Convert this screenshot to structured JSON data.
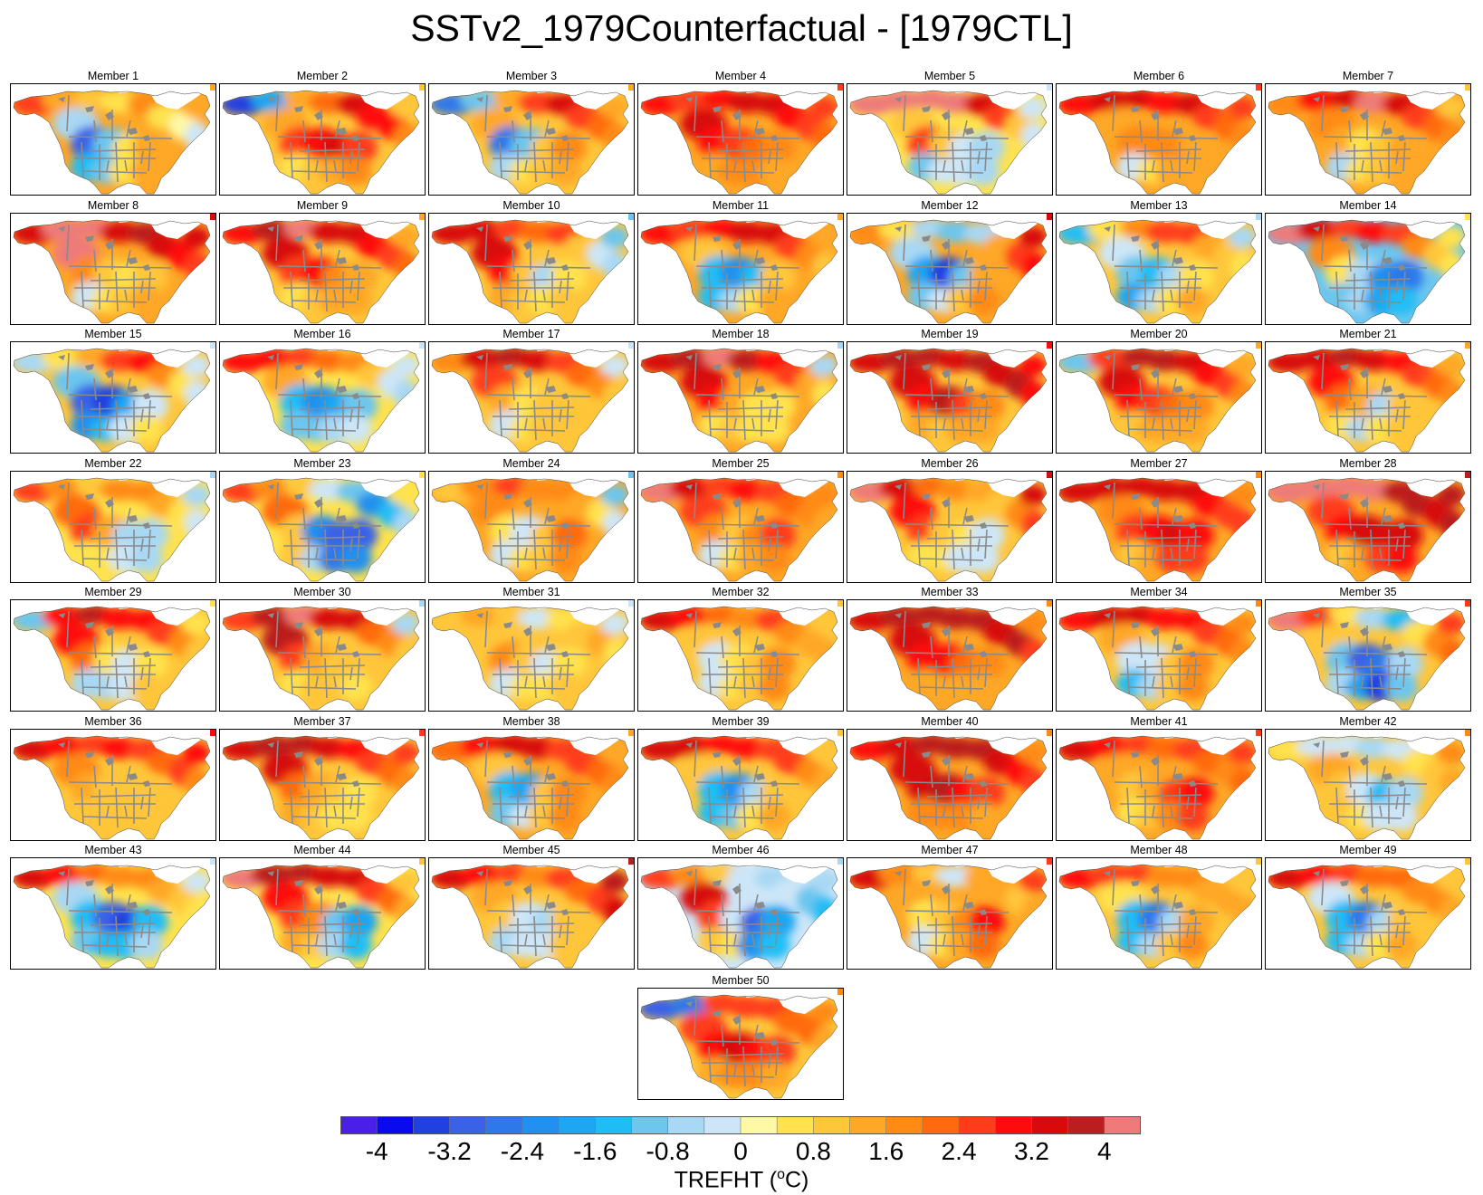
{
  "title": "SSTv2_1979Counterfactual - [1979CTL]",
  "colorbar": {
    "variable_label": "TREFHT (",
    "unit_super": "o",
    "unit_suffix": "C)",
    "tick_labels": [
      "-4",
      "-3.2",
      "-2.4",
      "-1.6",
      "-0.8",
      "0",
      "0.8",
      "1.6",
      "2.4",
      "3.2",
      "4"
    ],
    "colors": [
      "#4a1fe8",
      "#0a0af0",
      "#2040e0",
      "#3a62e6",
      "#2f78ea",
      "#2290ee",
      "#1fa6f2",
      "#20bdf5",
      "#6cc6ee",
      "#a8d8f4",
      "#cde6f7",
      "#fff8a4",
      "#ffe24d",
      "#ffc63a",
      "#ffa726",
      "#ff8a14",
      "#ff6a10",
      "#ff3c1a",
      "#ff0b0b",
      "#d80a0a",
      "#bb1e1e",
      "#ee7a7a"
    ]
  },
  "panels": [
    {
      "label": "Member 1",
      "anoms": [
        2.4,
        1.4,
        0.8,
        0.6,
        1.6,
        0.4,
        0,
        -0.4,
        1.2,
        -0.8,
        -3.0,
        -1.2,
        0.6,
        1.2,
        -1.6,
        -1.2,
        0.4,
        1.2,
        1.4
      ]
    },
    {
      "label": "Member 2",
      "anoms": [
        -3.6,
        -2.0,
        1.2,
        2.0,
        3.2,
        2.8,
        2.8,
        1.6,
        0.8,
        1.2,
        2.4,
        2.8,
        3.2,
        2.4,
        0.4,
        0.8,
        1.2,
        1.6,
        1.0
      ]
    },
    {
      "label": "Member 3",
      "anoms": [
        -2.8,
        -1.2,
        1.2,
        2.4,
        3.2,
        2.4,
        2.0,
        1.6,
        1.2,
        1.2,
        -2.8,
        -1.2,
        0.8,
        1.6,
        -0.8,
        0.4,
        0.8,
        1.2,
        1.0
      ]
    },
    {
      "label": "Member 4",
      "anoms": [
        2.8,
        2.4,
        2.8,
        3.2,
        3.2,
        2.8,
        2.4,
        2.0,
        2.4,
        3.2,
        3.0,
        2.4,
        2.0,
        1.6,
        1.2,
        1.6,
        1.6,
        1.2,
        1.2
      ]
    },
    {
      "label": "Member 5",
      "anoms": [
        4.0,
        4.0,
        4.0,
        4.2,
        3.2,
        2.4,
        0.8,
        -0.4,
        -0.4,
        0.8,
        2.4,
        0.8,
        -0.4,
        -0.8,
        -1.2,
        -0.4,
        -0.4,
        -0.8,
        0.4
      ]
    },
    {
      "label": "Member 6",
      "anoms": [
        2.8,
        3.2,
        3.2,
        2.8,
        3.2,
        2.4,
        2.0,
        1.6,
        2.4,
        1.2,
        1.6,
        1.6,
        1.6,
        1.2,
        -0.4,
        0.4,
        1.2,
        1.2,
        1.4
      ]
    },
    {
      "label": "Member 7",
      "anoms": [
        1.6,
        2.8,
        3.2,
        4.2,
        3.2,
        2.4,
        2.0,
        1.6,
        0.8,
        1.6,
        1.2,
        0.4,
        0.8,
        1.2,
        -0.8,
        0.4,
        0.8,
        1.2,
        1.2
      ]
    },
    {
      "label": "Member 8",
      "anoms": [
        3.2,
        4.0,
        4.2,
        3.2,
        3.6,
        3.2,
        2.8,
        2.4,
        3.2,
        4.2,
        1.6,
        0.8,
        0.4,
        0.8,
        -0.4,
        0.4,
        0.8,
        1.2,
        1.4
      ]
    },
    {
      "label": "Member 9",
      "anoms": [
        2.8,
        3.6,
        4.2,
        3.2,
        3.2,
        2.8,
        2.4,
        2.0,
        1.2,
        3.2,
        2.4,
        2.8,
        1.6,
        1.2,
        0.4,
        0.8,
        1.2,
        1.2,
        1.0
      ]
    },
    {
      "label": "Member 10",
      "anoms": [
        3.2,
        3.2,
        2.4,
        2.0,
        2.4,
        0.8,
        -0.4,
        -0.8,
        -1.2,
        3.2,
        2.8,
        0.8,
        -0.8,
        0.4,
        1.2,
        0.8,
        0.4,
        0.8,
        1.0
      ]
    },
    {
      "label": "Member 11",
      "anoms": [
        2.8,
        2.4,
        2.8,
        3.2,
        3.2,
        2.4,
        1.6,
        0.8,
        1.2,
        0.8,
        -1.6,
        -2.4,
        -1.6,
        0.8,
        -1.6,
        -0.8,
        0.4,
        1.2,
        1.2
      ]
    },
    {
      "label": "Member 12",
      "anoms": [
        1.6,
        0.4,
        -0.8,
        -1.2,
        -0.8,
        1.2,
        2.4,
        3.0,
        3.2,
        -0.8,
        -2.0,
        -3.6,
        -1.2,
        1.2,
        -1.2,
        -0.4,
        0.8,
        1.6,
        1.2
      ]
    },
    {
      "label": "Member 13",
      "anoms": [
        -1.6,
        0.4,
        1.6,
        2.4,
        2.4,
        1.2,
        0.8,
        0.4,
        -0.8,
        -0.4,
        -1.2,
        -1.6,
        -0.8,
        0.4,
        -2.0,
        -0.8,
        0.4,
        1.2,
        1.0
      ]
    },
    {
      "label": "Member 14",
      "anoms": [
        4.0,
        3.2,
        2.4,
        2.8,
        2.4,
        1.6,
        0.8,
        0.4,
        0.4,
        1.6,
        0.4,
        -0.8,
        -2.4,
        -2.8,
        -1.2,
        -0.8,
        -2.0,
        -1.6,
        -1.2
      ]
    },
    {
      "label": "Member 15",
      "anoms": [
        -0.8,
        0.4,
        1.2,
        2.4,
        2.8,
        1.6,
        0.4,
        -0.4,
        -0.4,
        -1.2,
        -3.2,
        -3.6,
        -2.0,
        -0.4,
        -2.4,
        -1.6,
        -0.4,
        0.4,
        0.8
      ]
    },
    {
      "label": "Member 16",
      "anoms": [
        2.8,
        2.8,
        2.4,
        2.0,
        1.6,
        0.8,
        -0.4,
        -0.8,
        -0.4,
        1.2,
        -1.6,
        -2.4,
        -2.0,
        -1.2,
        -1.2,
        -1.2,
        -0.8,
        -0.4,
        0.4
      ]
    },
    {
      "label": "Member 17",
      "anoms": [
        1.6,
        3.2,
        3.6,
        3.2,
        2.4,
        2.0,
        1.6,
        0.8,
        -0.4,
        2.4,
        1.2,
        0.4,
        0.8,
        0.8,
        -0.4,
        0.4,
        0.8,
        0.8,
        1.0
      ]
    },
    {
      "label": "Member 18",
      "anoms": [
        3.2,
        3.6,
        4.0,
        3.6,
        2.8,
        2.4,
        1.2,
        0.4,
        -0.8,
        3.2,
        2.8,
        1.2,
        0.4,
        0.4,
        0.4,
        0.8,
        0.4,
        0.4,
        1.2
      ]
    },
    {
      "label": "Member 19",
      "anoms": [
        3.2,
        3.6,
        3.6,
        3.2,
        3.6,
        3.2,
        3.6,
        2.8,
        2.8,
        3.2,
        2.8,
        3.6,
        2.4,
        1.6,
        1.2,
        0.8,
        1.2,
        1.2,
        1.0
      ]
    },
    {
      "label": "Member 20",
      "anoms": [
        -1.2,
        2.4,
        3.6,
        3.6,
        3.2,
        2.8,
        2.4,
        1.6,
        1.2,
        3.2,
        2.8,
        2.4,
        2.0,
        1.6,
        0.8,
        1.2,
        1.2,
        1.2,
        1.0
      ]
    },
    {
      "label": "Member 21",
      "anoms": [
        3.2,
        3.2,
        3.6,
        3.2,
        2.8,
        2.4,
        2.0,
        1.6,
        1.2,
        2.8,
        2.0,
        1.2,
        -0.8,
        0.8,
        0.4,
        -0.8,
        0.4,
        0.8,
        1.0
      ]
    },
    {
      "label": "Member 22",
      "anoms": [
        2.4,
        1.6,
        0.8,
        1.6,
        1.6,
        1.2,
        0.4,
        -0.4,
        -0.8,
        2.0,
        2.4,
        1.2,
        -0.8,
        -0.8,
        0.4,
        0.4,
        -0.4,
        -0.8,
        0.4
      ]
    },
    {
      "label": "Member 23",
      "anoms": [
        2.4,
        1.6,
        0.8,
        -0.4,
        -1.2,
        -2.4,
        -1.6,
        -0.8,
        0.4,
        2.0,
        0.8,
        -2.4,
        -3.2,
        -3.2,
        0.8,
        -0.8,
        -2.8,
        -2.4,
        0.4
      ]
    },
    {
      "label": "Member 24",
      "anoms": [
        0.8,
        1.6,
        2.4,
        1.6,
        1.6,
        1.2,
        0.4,
        -0.4,
        -1.2,
        1.6,
        0.4,
        -0.4,
        0.8,
        2.0,
        -0.4,
        0.4,
        0.8,
        1.6,
        1.2
      ]
    },
    {
      "label": "Member 25",
      "anoms": [
        4.0,
        3.2,
        2.4,
        2.8,
        2.4,
        2.0,
        1.6,
        1.2,
        1.6,
        2.4,
        1.6,
        0.8,
        1.6,
        2.4,
        -0.4,
        0.4,
        1.2,
        1.6,
        1.2
      ]
    },
    {
      "label": "Member 26",
      "anoms": [
        4.0,
        3.2,
        2.0,
        1.6,
        1.2,
        0.8,
        1.6,
        2.4,
        3.2,
        2.8,
        2.4,
        0.8,
        0.4,
        -0.4,
        0.4,
        0.4,
        -0.4,
        -0.4,
        0.8
      ]
    },
    {
      "label": "Member 27",
      "anoms": [
        3.2,
        3.2,
        3.2,
        3.2,
        3.2,
        2.8,
        2.4,
        2.4,
        1.6,
        1.6,
        2.4,
        2.8,
        3.2,
        2.8,
        0.8,
        1.2,
        2.4,
        2.4,
        1.2
      ]
    },
    {
      "label": "Member 28",
      "anoms": [
        4.0,
        4.0,
        4.0,
        4.0,
        3.6,
        3.6,
        3.2,
        3.6,
        3.6,
        2.4,
        2.8,
        3.2,
        3.2,
        3.2,
        0.8,
        1.2,
        2.4,
        2.8,
        1.4
      ]
    },
    {
      "label": "Member 29",
      "anoms": [
        -1.2,
        2.8,
        3.6,
        2.8,
        2.8,
        2.4,
        1.6,
        0.8,
        0.4,
        2.8,
        2.0,
        0.4,
        -0.4,
        0.4,
        -0.8,
        -0.8,
        -0.4,
        0.8,
        1.0
      ]
    },
    {
      "label": "Member 30",
      "anoms": [
        2.4,
        3.6,
        4.0,
        3.2,
        3.2,
        2.0,
        1.6,
        0.8,
        -0.8,
        3.6,
        2.4,
        1.2,
        0.8,
        0.8,
        0.4,
        0.8,
        0.8,
        0.4,
        1.0
      ]
    },
    {
      "label": "Member 31",
      "anoms": [
        0.8,
        1.2,
        0.8,
        -0.4,
        0.4,
        0.8,
        1.2,
        0.4,
        -0.4,
        0.8,
        1.6,
        0.8,
        -0.4,
        0.4,
        -0.4,
        0.4,
        0.4,
        0.8,
        0.8
      ]
    },
    {
      "label": "Member 32",
      "anoms": [
        3.2,
        2.8,
        2.0,
        1.6,
        2.4,
        1.6,
        1.2,
        1.2,
        0.8,
        0.8,
        -0.4,
        0.4,
        0.8,
        1.6,
        -0.4,
        0.4,
        0.8,
        1.6,
        1.0
      ]
    },
    {
      "label": "Member 33",
      "anoms": [
        3.2,
        3.6,
        3.6,
        3.6,
        3.6,
        3.2,
        3.6,
        2.4,
        1.6,
        3.2,
        3.0,
        2.8,
        2.0,
        1.6,
        1.2,
        1.2,
        1.2,
        1.2,
        1.2
      ]
    },
    {
      "label": "Member 34",
      "anoms": [
        2.8,
        3.2,
        3.2,
        2.8,
        2.8,
        2.4,
        2.0,
        1.6,
        1.6,
        1.2,
        -0.4,
        -0.4,
        0.8,
        1.6,
        -1.6,
        -0.8,
        0.8,
        1.6,
        1.0
      ]
    },
    {
      "label": "Member 35",
      "anoms": [
        4.0,
        2.4,
        0.4,
        -0.8,
        -1.6,
        0.4,
        1.6,
        2.0,
        2.4,
        0.8,
        -1.2,
        -3.2,
        -2.8,
        -0.8,
        -0.8,
        -2.0,
        -3.6,
        -1.2,
        0.8
      ]
    },
    {
      "label": "Member 36",
      "anoms": [
        3.2,
        2.8,
        2.4,
        2.8,
        2.4,
        2.0,
        2.4,
        1.6,
        2.8,
        1.6,
        1.2,
        0.8,
        0.8,
        0.8,
        0.8,
        0.8,
        0.8,
        0.8,
        1.0
      ]
    },
    {
      "label": "Member 37",
      "anoms": [
        3.2,
        3.6,
        3.6,
        3.2,
        2.8,
        2.4,
        2.0,
        1.6,
        2.4,
        3.2,
        2.0,
        1.2,
        0.8,
        0.4,
        1.2,
        0.8,
        0.4,
        0.4,
        1.0
      ]
    },
    {
      "label": "Member 38",
      "anoms": [
        2.0,
        2.8,
        3.2,
        3.2,
        2.4,
        2.4,
        2.0,
        1.6,
        1.2,
        0.8,
        -1.6,
        -2.0,
        0.8,
        1.6,
        -1.2,
        -0.4,
        0.8,
        1.6,
        1.2
      ]
    },
    {
      "label": "Member 39",
      "anoms": [
        3.2,
        3.2,
        2.8,
        2.8,
        2.4,
        2.4,
        1.6,
        1.2,
        0.8,
        0.8,
        -1.6,
        -2.4,
        -0.8,
        0.8,
        -1.6,
        -1.2,
        0.4,
        1.2,
        1.0
      ]
    },
    {
      "label": "Member 40",
      "anoms": [
        2.8,
        3.2,
        3.6,
        3.6,
        3.6,
        3.2,
        2.8,
        2.4,
        1.6,
        3.2,
        3.2,
        3.6,
        2.8,
        2.4,
        1.6,
        1.6,
        1.6,
        1.2,
        1.2
      ]
    },
    {
      "label": "Member 41",
      "anoms": [
        3.2,
        2.8,
        2.4,
        2.0,
        2.4,
        2.0,
        1.6,
        2.0,
        2.4,
        1.2,
        0.8,
        1.2,
        2.4,
        2.8,
        0.4,
        0.8,
        1.6,
        2.4,
        1.4
      ]
    },
    {
      "label": "Member 42",
      "anoms": [
        0.4,
        -0.4,
        -0.4,
        -0.8,
        -0.4,
        0.4,
        0.8,
        1.2,
        1.6,
        1.2,
        0.8,
        -0.4,
        -1.6,
        -0.8,
        0.8,
        0.4,
        -0.4,
        -0.4,
        0.8
      ]
    },
    {
      "label": "Member 43",
      "anoms": [
        3.2,
        2.8,
        2.0,
        1.6,
        1.6,
        1.2,
        0.8,
        0.4,
        -0.4,
        -0.8,
        -1.6,
        -3.2,
        -3.6,
        -1.6,
        -1.2,
        -1.6,
        -1.6,
        -0.8,
        0.4
      ]
    },
    {
      "label": "Member 44",
      "anoms": [
        4.0,
        3.6,
        3.6,
        3.2,
        3.2,
        2.4,
        2.0,
        1.2,
        0.8,
        2.8,
        2.4,
        1.6,
        -1.2,
        -2.0,
        1.2,
        0.8,
        -0.8,
        -1.6,
        0.4
      ]
    },
    {
      "label": "Member 45",
      "anoms": [
        3.2,
        2.8,
        2.4,
        1.6,
        2.4,
        2.0,
        2.4,
        3.2,
        3.6,
        1.2,
        0.8,
        -0.4,
        -0.8,
        0.8,
        -0.8,
        -0.4,
        -0.4,
        0.8,
        0.8
      ]
    },
    {
      "label": "Member 46",
      "anoms": [
        2.4,
        1.6,
        0.8,
        -0.4,
        -0.8,
        -0.4,
        -1.2,
        -1.6,
        -0.8,
        3.2,
        2.4,
        -0.4,
        -3.2,
        -2.0,
        0.8,
        0.4,
        -2.4,
        -1.6,
        -0.4
      ]
    },
    {
      "label": "Member 47",
      "anoms": [
        3.2,
        1.6,
        0.8,
        -0.4,
        1.2,
        1.2,
        0.8,
        1.2,
        2.4,
        1.2,
        0.4,
        0.8,
        1.6,
        2.8,
        -0.4,
        0.4,
        1.2,
        2.0,
        1.2
      ]
    },
    {
      "label": "Member 48",
      "anoms": [
        2.8,
        2.4,
        2.4,
        1.6,
        1.6,
        1.2,
        1.2,
        1.2,
        0.8,
        0.4,
        -1.6,
        -2.8,
        -0.8,
        1.2,
        -1.6,
        -0.8,
        0.8,
        1.6,
        1.0
      ]
    },
    {
      "label": "Member 49",
      "anoms": [
        3.2,
        2.8,
        2.4,
        2.0,
        2.0,
        1.6,
        1.6,
        1.2,
        0.8,
        -0.4,
        -1.6,
        -2.8,
        -0.8,
        0.8,
        -1.6,
        -0.8,
        0.4,
        1.2,
        1.0
      ]
    },
    {
      "label": "Member 50",
      "anoms": [
        -3.2,
        -2.8,
        2.4,
        2.4,
        2.4,
        2.0,
        2.0,
        1.2,
        1.6,
        2.4,
        2.8,
        3.2,
        2.8,
        2.4,
        1.2,
        1.6,
        1.6,
        1.2,
        1.0
      ]
    }
  ]
}
